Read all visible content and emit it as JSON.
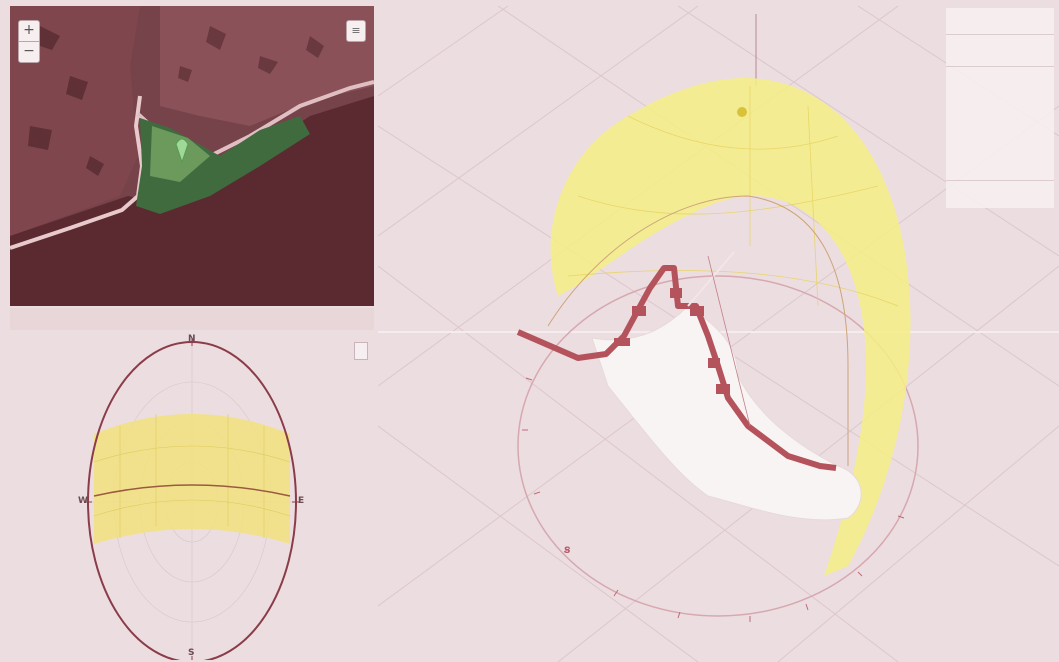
{
  "map": {
    "zoom_in_label": "+",
    "zoom_out_label": "−",
    "layer_toggle_label": "≡",
    "attribution_line1": "",
    "attribution_line2": ""
  },
  "sky_chart": {
    "mode_button_label": "",
    "north_label": "N",
    "south_label": "S",
    "east_label": "E",
    "west_label": "W"
  },
  "view3d": {
    "north_label": "",
    "south_label": "S",
    "compass_ticks": [
      "",
      "",
      "",
      "",
      "",
      "",
      "",
      "",
      ""
    ]
  },
  "info_panel": {
    "title": "",
    "subtitle": "",
    "section_header": "",
    "rows": [
      {
        "label": "",
        "value": ""
      },
      {
        "label": "",
        "value": ""
      },
      {
        "label": "",
        "value": ""
      }
    ],
    "footer": ""
  },
  "colors": {
    "sun_band": "#f5eb7a",
    "building": "#b5535c",
    "terrain": "#f7f2f1",
    "background": "#ecdde0"
  }
}
